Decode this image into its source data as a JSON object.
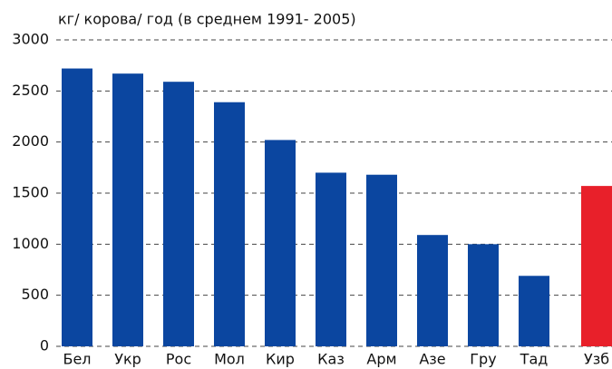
{
  "chart_data": {
    "type": "bar",
    "title": "кг/ корова/ год (в среднем 1991- 2005)",
    "categories": [
      "Бел",
      "Укр",
      "Рос",
      "Мол",
      "Кир",
      "Каз",
      "Арм",
      "Азе",
      "Гру",
      "Тад",
      "Узб"
    ],
    "values": [
      2720,
      2670,
      2590,
      2390,
      2020,
      1700,
      1680,
      1090,
      1000,
      690,
      1570
    ],
    "colors": [
      "#0b46a0",
      "#0b46a0",
      "#0b46a0",
      "#0b46a0",
      "#0b46a0",
      "#0b46a0",
      "#0b46a0",
      "#0b46a0",
      "#0b46a0",
      "#0b46a0",
      "#e8202a"
    ],
    "ylim": [
      0,
      3000
    ],
    "yticks": [
      0,
      500,
      1000,
      1500,
      2000,
      2500,
      3000
    ],
    "grid": true
  }
}
